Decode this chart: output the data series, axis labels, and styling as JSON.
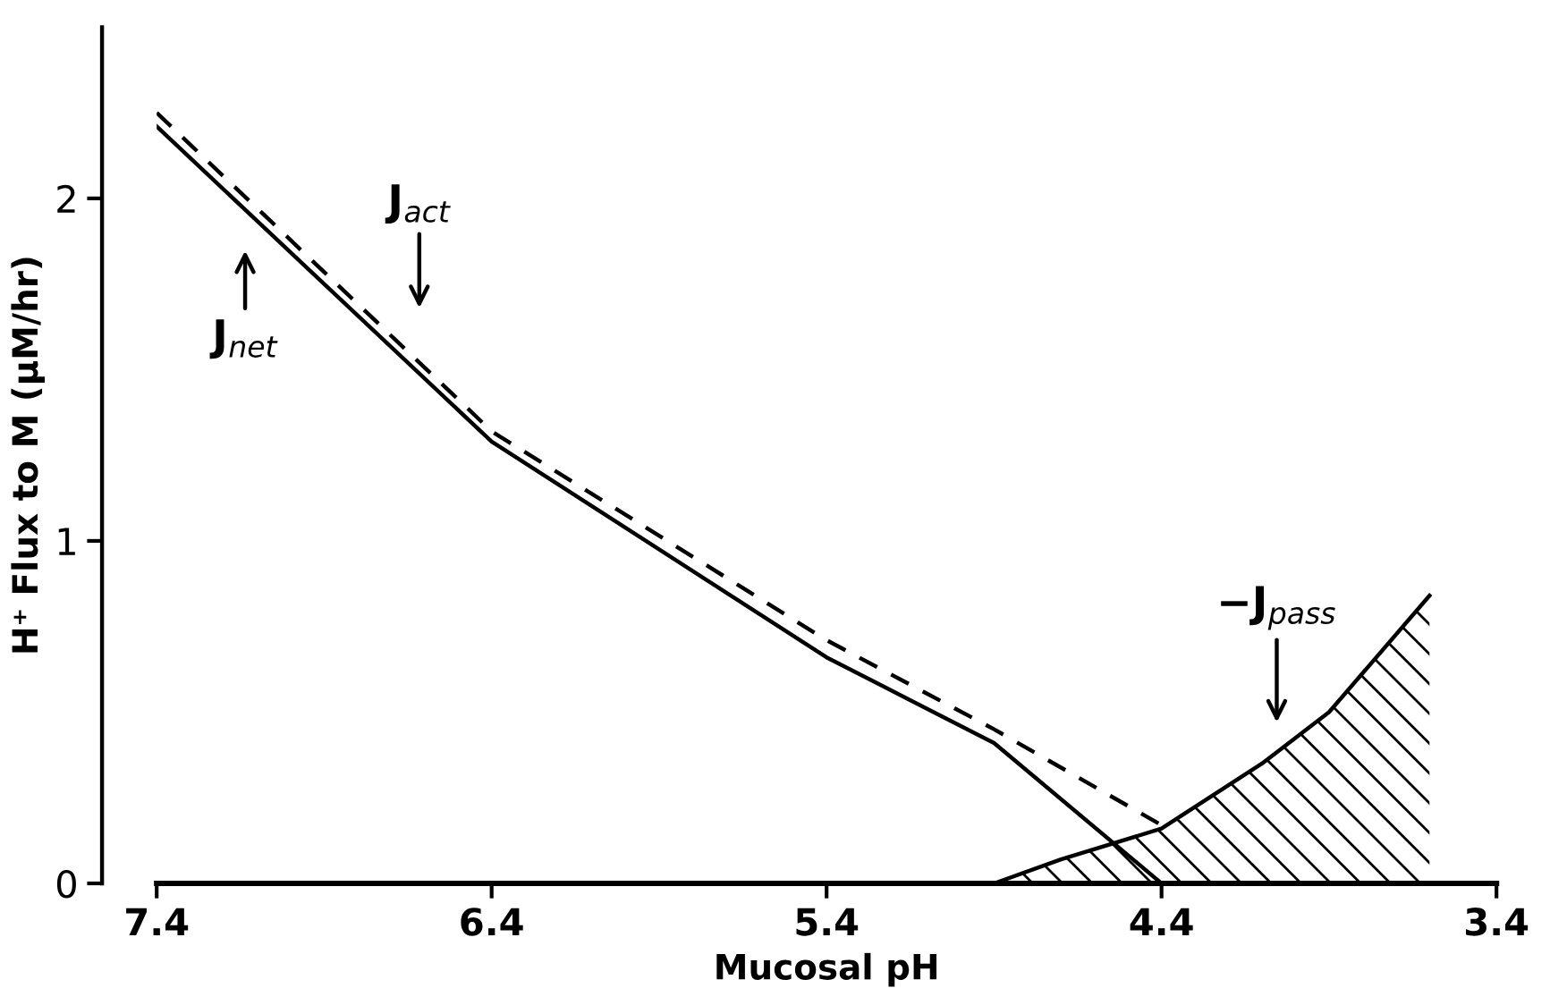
{
  "chart_data": {
    "type": "line",
    "xlabel": "Mucosal pH",
    "ylabel": "H⁺ Flux to M (µM/hr)",
    "xlim": [
      7.4,
      3.4
    ],
    "xticks": [
      7.4,
      6.4,
      5.4,
      4.4,
      3.4
    ],
    "ylim": [
      0,
      2.5
    ],
    "yticks": [
      0,
      1,
      2
    ],
    "grid": false,
    "legend": false,
    "marker": "none",
    "series": [
      {
        "line_style": "solid",
        "color": "#000000",
        "x": [
          7.4,
          6.4,
          5.4,
          4.9,
          4.4
        ],
        "values": [
          2.21,
          1.29,
          0.66,
          0.41,
          0
        ]
      },
      {
        "line_style": "dashed",
        "color": "#000000",
        "x": [
          7.4,
          6.4,
          5.4,
          4.9,
          4.4
        ],
        "values": [
          2.25,
          1.32,
          0.71,
          0.45,
          0.17
        ]
      },
      {
        "type": "area",
        "line_style": "solid",
        "color": "#000000",
        "x": [
          7.4,
          6.4,
          5.4,
          4.9,
          4.7,
          4.4,
          4.1,
          3.9,
          3.6
        ],
        "values": [
          0,
          0,
          0,
          0,
          0.07,
          0.16,
          0.35,
          0.5,
          0.84
        ]
      }
    ],
    "annotations": [
      "J$_{net}$",
      "J$_{act}$",
      "−J$_{pass}$"
    ]
  }
}
